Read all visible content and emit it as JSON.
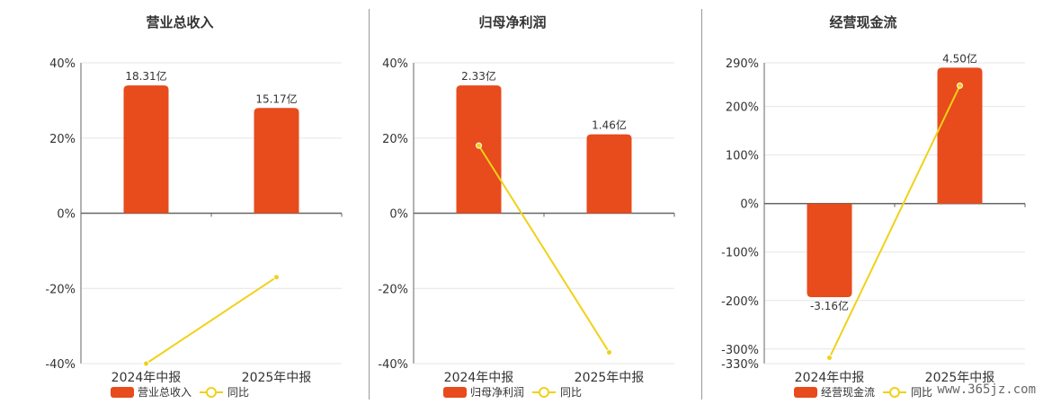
{
  "colors": {
    "bar": "#E84B1C",
    "line": "#F1D118",
    "grid": "#e6e6e6",
    "axis": "#666666",
    "text": "#333333"
  },
  "watermark": "www.365jz.com",
  "chart_data": [
    {
      "type": "bar",
      "title": "营业总收入",
      "categories": [
        "2024年中报",
        "2025年中报"
      ],
      "y_ticks": [
        "40%",
        "20%",
        "0%",
        "-20%",
        "-40%"
      ],
      "ylim": [
        -40,
        40
      ],
      "series": [
        {
          "name": "营业总收入",
          "type": "bar",
          "values": [
            34,
            28
          ],
          "labels": [
            "18.31亿",
            "15.17亿"
          ]
        },
        {
          "name": "同比",
          "type": "line",
          "values": [
            -40,
            -17
          ]
        }
      ],
      "legend": "bottom"
    },
    {
      "type": "bar",
      "title": "归母净利润",
      "categories": [
        "2024年中报",
        "2025年中报"
      ],
      "y_ticks": [
        "40%",
        "20%",
        "0%",
        "-20%",
        "-40%"
      ],
      "ylim": [
        -40,
        40
      ],
      "series": [
        {
          "name": "归母净利润",
          "type": "bar",
          "values": [
            34,
            21
          ],
          "labels": [
            "2.33亿",
            "1.46亿"
          ]
        },
        {
          "name": "同比",
          "type": "line",
          "values": [
            18,
            -37
          ]
        }
      ],
      "legend": "bottom"
    },
    {
      "type": "bar",
      "title": "经营现金流",
      "categories": [
        "2024年中报",
        "2025年中报"
      ],
      "y_ticks": [
        "290%",
        "200%",
        "100%",
        "0%",
        "-100%",
        "-200%",
        "-300%",
        "-330%"
      ],
      "ylim": [
        -330,
        290
      ],
      "series": [
        {
          "name": "经营现金流",
          "type": "bar",
          "values": [
            -193,
            280
          ],
          "labels": [
            "-3.16亿",
            "4.50亿"
          ]
        },
        {
          "name": "同比",
          "type": "line",
          "values": [
            -318,
            243
          ]
        }
      ],
      "legend": "bottom"
    }
  ]
}
